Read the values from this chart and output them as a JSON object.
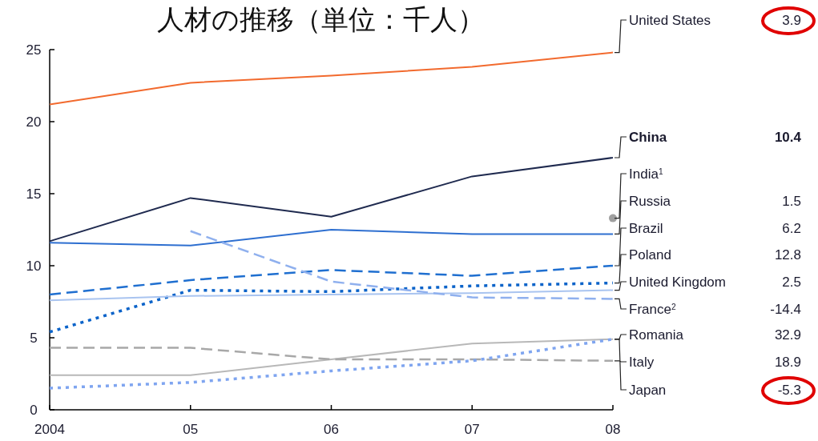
{
  "chart_data": {
    "type": "line",
    "title": "人材の推移（単位：千人）",
    "categories": [
      "2004",
      "05",
      "06",
      "07",
      "08"
    ],
    "ylim": [
      0,
      25
    ],
    "yticks": [
      0,
      5,
      10,
      15,
      20,
      25
    ],
    "grid": false,
    "series": [
      {
        "name": "United States",
        "color": "#f26a2e",
        "line_style": "solid",
        "values": [
          21.2,
          22.7,
          23.2,
          23.8,
          24.8
        ]
      },
      {
        "name": "China",
        "color": "#1f2a4f",
        "line_style": "solid",
        "values": [
          11.7,
          14.7,
          13.4,
          16.2,
          17.5
        ]
      },
      {
        "name": "India$^{1}$",
        "color": "#a0a0a0",
        "type": "scatter",
        "marker": "circle",
        "values": [
          null,
          null,
          null,
          null,
          13.3
        ]
      },
      {
        "name": "Russia",
        "color": "#2e6fd0",
        "line_style": "solid",
        "values": [
          11.6,
          11.4,
          12.5,
          12.2,
          12.2
        ]
      },
      {
        "name": "Brazil",
        "color": "#1f6fd0",
        "line_style": "dashed",
        "values": [
          8.0,
          9.0,
          9.7,
          9.3,
          10.0
        ]
      },
      {
        "name": "Poland",
        "color": "#0b63c9",
        "line_style": "dotted",
        "values": [
          5.4,
          8.3,
          8.2,
          8.6,
          8.8
        ]
      },
      {
        "name": "United Kingdom",
        "color": "#a9c4f0",
        "line_style": "solid",
        "values": [
          7.6,
          7.9,
          8.0,
          8.1,
          8.3
        ]
      },
      {
        "name": "France$^{2}$",
        "color": "#8fb0ee",
        "line_style": "dashed",
        "values": [
          null,
          12.4,
          8.9,
          7.8,
          7.7
        ]
      },
      {
        "name": "Romania",
        "color": "#b8b8b8",
        "line_style": "solid",
        "values": [
          2.4,
          2.4,
          3.5,
          4.6,
          4.9
        ]
      },
      {
        "name": "Italy",
        "color": "#a8a8a8",
        "line_style": "dashed",
        "values": [
          4.3,
          4.3,
          3.5,
          3.5,
          3.4
        ]
      },
      {
        "name": "Japan",
        "color": "#7fa5f0",
        "line_style": "dotted",
        "values": [
          1.5,
          1.9,
          2.7,
          3.4,
          4.9
        ]
      }
    ],
    "annotations": [
      "3.9",
      "10.4",
      "1.5",
      "6.2",
      "12.8",
      "2.5",
      "-14.4",
      "32.9",
      "18.9",
      "-5.3"
    ]
  }
}
